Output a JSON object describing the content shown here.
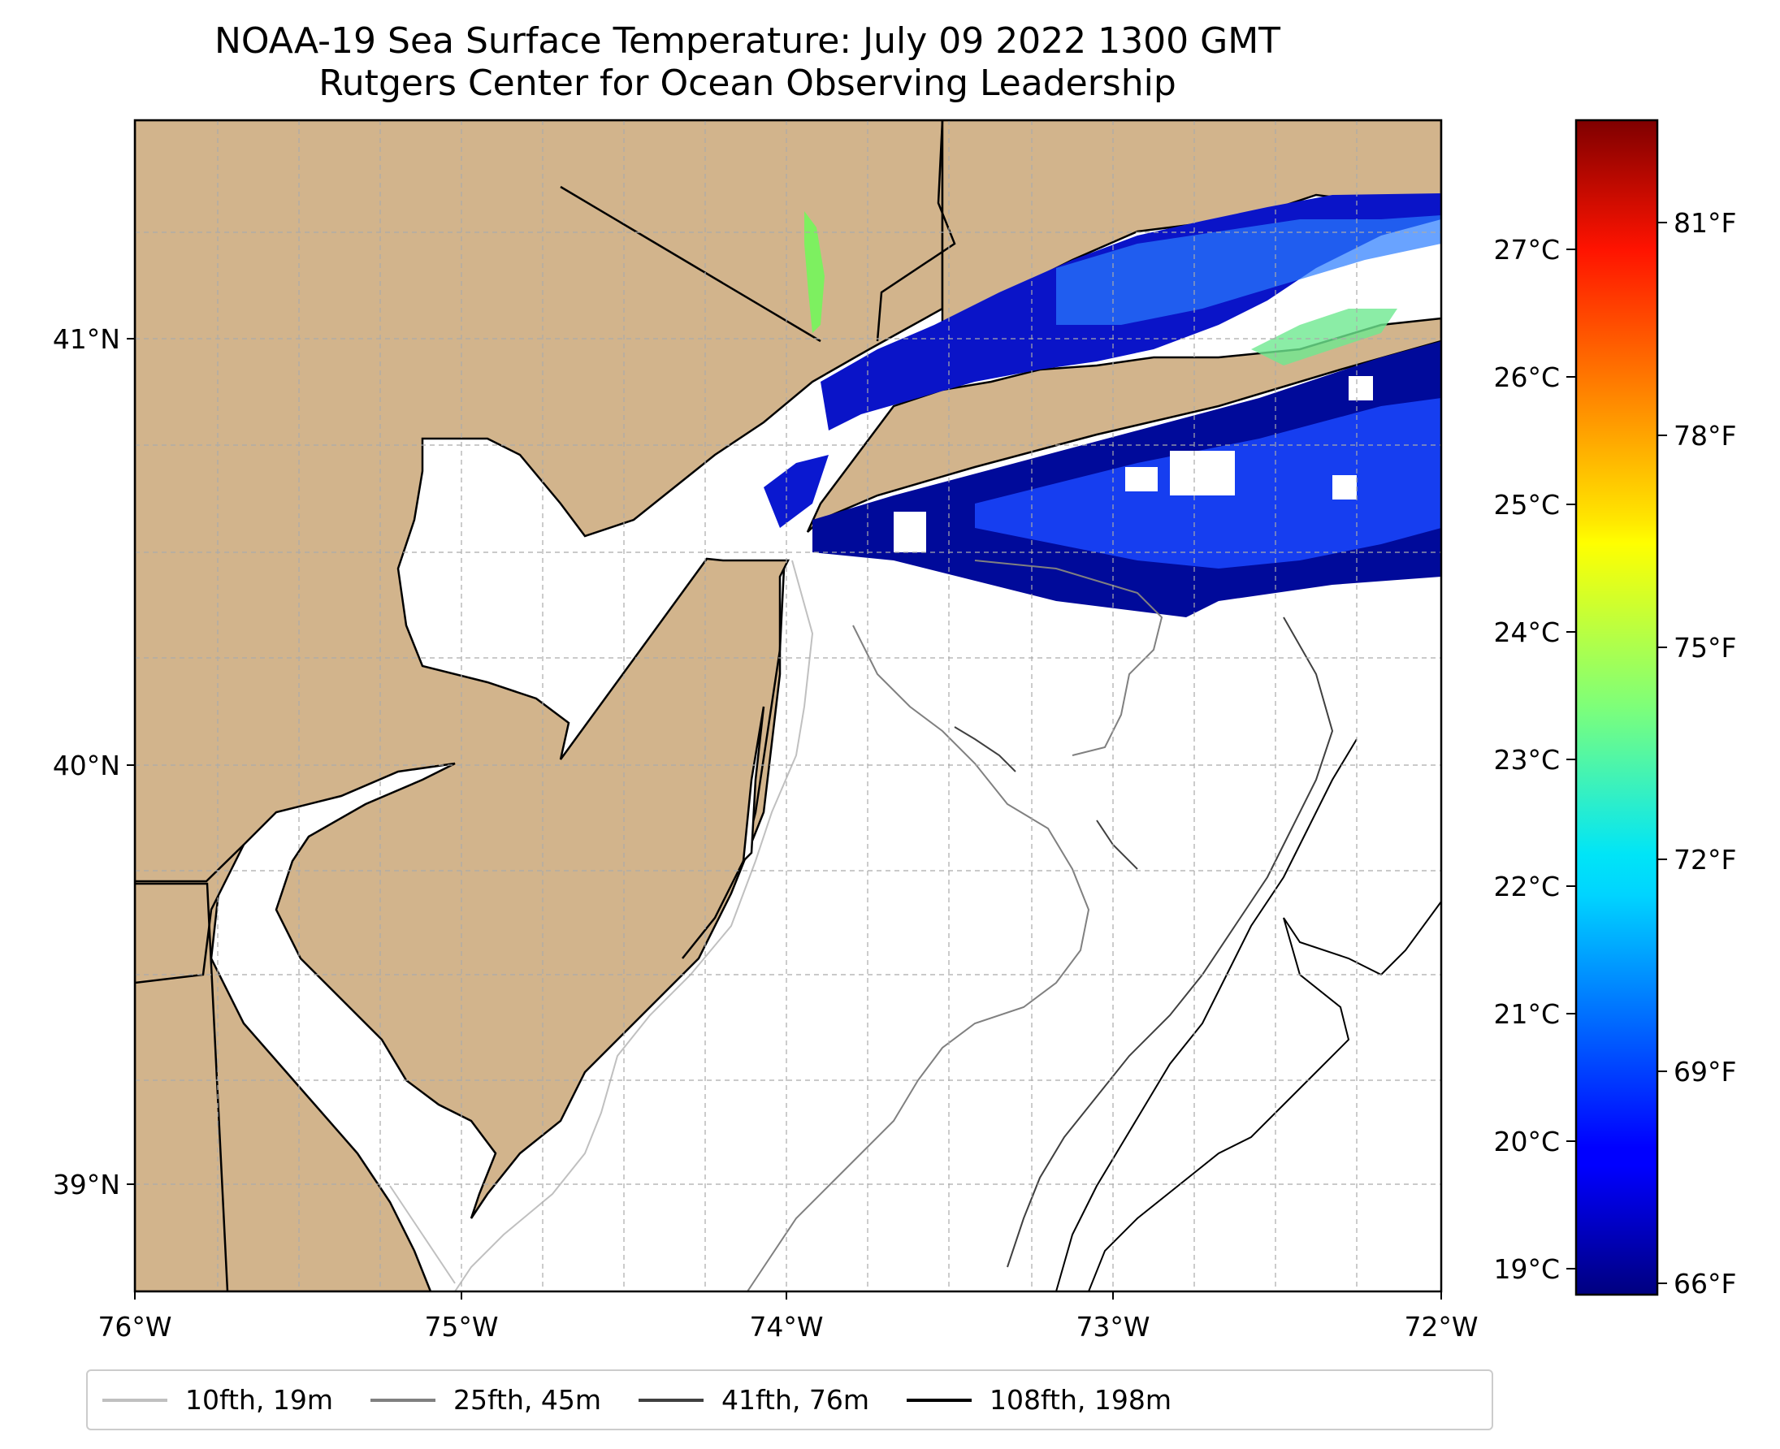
{
  "map": {
    "title": "NOAA-19 Sea Surface Temperature: July 09 2022 1300 GMT",
    "subtitle": "Rutgers Center for Ocean Observing Leadership",
    "lon_range": [
      -76,
      -72
    ],
    "lat_range": [
      38.75,
      41.5
    ],
    "lon_ticks": [
      {
        "value": -76,
        "label": "76°W"
      },
      {
        "value": -75,
        "label": "75°W"
      },
      {
        "value": -74,
        "label": "74°W"
      },
      {
        "value": -73,
        "label": "73°W"
      },
      {
        "value": -72,
        "label": "72°W"
      }
    ],
    "lat_ticks": [
      {
        "value": 41,
        "label": "41°N"
      },
      {
        "value": 40,
        "label": "40°N"
      },
      {
        "value": 39,
        "label": "39°N"
      }
    ],
    "land_color": "#d2b48c",
    "grid": true
  },
  "colorbar": {
    "colormap": "jet",
    "range_c": [
      18.9,
      28.0
    ],
    "celsius_ticks": [
      "19°C",
      "20°C",
      "21°C",
      "22°C",
      "23°C",
      "24°C",
      "25°C",
      "26°C",
      "27°C"
    ],
    "fahrenheit_ticks": [
      "66°F",
      "69°F",
      "72°F",
      "75°F",
      "78°F",
      "81°F"
    ]
  },
  "legend": [
    {
      "label": "10fth, 19m",
      "color": "#c0c0c0"
    },
    {
      "label": "25fth, 45m",
      "color": "#808080"
    },
    {
      "label": "41fth, 76m",
      "color": "#404040"
    },
    {
      "label": "108fth, 198m",
      "color": "#000000"
    }
  ]
}
